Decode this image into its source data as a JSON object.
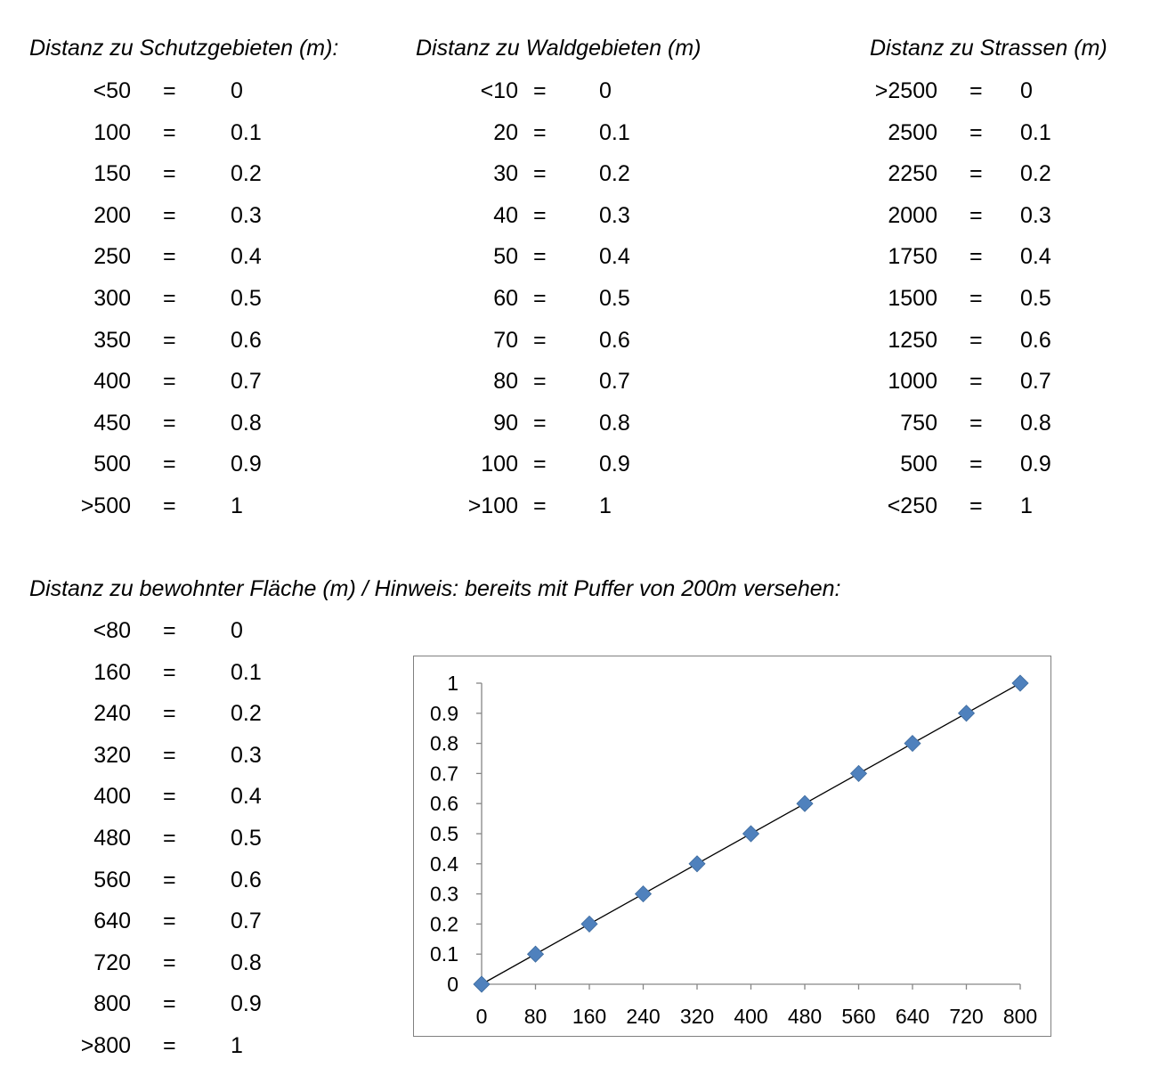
{
  "sections": {
    "schutz": {
      "title": "Distanz zu Schutzgebieten (m):",
      "rows": [
        {
          "d": "<50",
          "eq": "=",
          "v": "0"
        },
        {
          "d": "100",
          "eq": "=",
          "v": "0.1"
        },
        {
          "d": "150",
          "eq": "=",
          "v": "0.2"
        },
        {
          "d": "200",
          "eq": "=",
          "v": "0.3"
        },
        {
          "d": "250",
          "eq": "=",
          "v": "0.4"
        },
        {
          "d": "300",
          "eq": "=",
          "v": "0.5"
        },
        {
          "d": "350",
          "eq": "=",
          "v": "0.6"
        },
        {
          "d": "400",
          "eq": "=",
          "v": "0.7"
        },
        {
          "d": "450",
          "eq": "=",
          "v": "0.8"
        },
        {
          "d": "500",
          "eq": "=",
          "v": "0.9"
        },
        {
          "d": ">500",
          "eq": "=",
          "v": "1"
        }
      ]
    },
    "wald": {
      "title": "Distanz zu Waldgebieten (m)",
      "rows": [
        {
          "d": "<10",
          "eq": "=",
          "v": "0"
        },
        {
          "d": "20",
          "eq": "=",
          "v": "0.1"
        },
        {
          "d": "30",
          "eq": "=",
          "v": "0.2"
        },
        {
          "d": "40",
          "eq": "=",
          "v": "0.3"
        },
        {
          "d": "50",
          "eq": "=",
          "v": "0.4"
        },
        {
          "d": "60",
          "eq": "=",
          "v": "0.5"
        },
        {
          "d": "70",
          "eq": "=",
          "v": "0.6"
        },
        {
          "d": "80",
          "eq": "=",
          "v": "0.7"
        },
        {
          "d": "90",
          "eq": "=",
          "v": "0.8"
        },
        {
          "d": "100",
          "eq": "=",
          "v": "0.9"
        },
        {
          "d": ">100",
          "eq": "=",
          "v": "1"
        }
      ]
    },
    "strassen": {
      "title": "Distanz zu Strassen (m)",
      "rows": [
        {
          "d": ">2500",
          "eq": "=",
          "v": "0"
        },
        {
          "d": "2500",
          "eq": "=",
          "v": "0.1"
        },
        {
          "d": "2250",
          "eq": "=",
          "v": "0.2"
        },
        {
          "d": "2000",
          "eq": "=",
          "v": "0.3"
        },
        {
          "d": "1750",
          "eq": "=",
          "v": "0.4"
        },
        {
          "d": "1500",
          "eq": "=",
          "v": "0.5"
        },
        {
          "d": "1250",
          "eq": "=",
          "v": "0.6"
        },
        {
          "d": "1000",
          "eq": "=",
          "v": "0.7"
        },
        {
          "d": "750",
          "eq": "=",
          "v": "0.8"
        },
        {
          "d": "500",
          "eq": "=",
          "v": "0.9"
        },
        {
          "d": "<250",
          "eq": "=",
          "v": "1"
        }
      ]
    },
    "bewohnt": {
      "title": "Distanz zu bewohnter Fläche (m) / Hinweis: bereits mit Puffer von 200m versehen:",
      "rows": [
        {
          "d": "<80",
          "eq": "=",
          "v": "0"
        },
        {
          "d": "160",
          "eq": "=",
          "v": "0.1"
        },
        {
          "d": "240",
          "eq": "=",
          "v": "0.2"
        },
        {
          "d": "320",
          "eq": "=",
          "v": "0.3"
        },
        {
          "d": "400",
          "eq": "=",
          "v": "0.4"
        },
        {
          "d": "480",
          "eq": "=",
          "v": "0.5"
        },
        {
          "d": "560",
          "eq": "=",
          "v": "0.6"
        },
        {
          "d": "640",
          "eq": "=",
          "v": "0.7"
        },
        {
          "d": "720",
          "eq": "=",
          "v": "0.8"
        },
        {
          "d": "800",
          "eq": "=",
          "v": "0.9"
        },
        {
          "d": ">800",
          "eq": "=",
          "v": "1"
        }
      ]
    }
  },
  "chart_data": {
    "type": "scatter",
    "title": "",
    "xlabel": "",
    "ylabel": "",
    "x": [
      0,
      80,
      160,
      240,
      320,
      400,
      480,
      560,
      640,
      720,
      800
    ],
    "series": [
      {
        "values": [
          0,
          0.1,
          0.2,
          0.3,
          0.4,
          0.5,
          0.6,
          0.7,
          0.8,
          0.9,
          1
        ]
      }
    ],
    "xticks": [
      "0",
      "80",
      "160",
      "240",
      "320",
      "400",
      "480",
      "560",
      "640",
      "720",
      "800"
    ],
    "yticks": [
      "0",
      "0.1",
      "0.2",
      "0.3",
      "0.4",
      "0.5",
      "0.6",
      "0.7",
      "0.8",
      "0.9",
      "1"
    ],
    "xlim": [
      0,
      800
    ],
    "ylim": [
      0,
      1
    ],
    "trendline": "linear",
    "grid": false,
    "legend": "none",
    "marker": "diamond",
    "marker_color": "#4F81BD",
    "line_color": "#000000"
  }
}
